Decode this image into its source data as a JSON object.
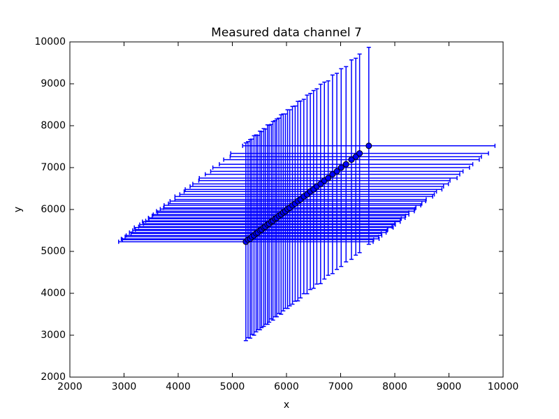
{
  "chart_data": {
    "type": "scatter",
    "title": "Measured data channel 7",
    "xlabel": "x",
    "ylabel": "y",
    "x": [
      5250,
      5290,
      5330,
      5360,
      5400,
      5440,
      5470,
      5510,
      5540,
      5580,
      5610,
      5650,
      5680,
      5720,
      5750,
      5790,
      5820,
      5860,
      5900,
      5940,
      5980,
      6020,
      6060,
      6110,
      6160,
      6210,
      6260,
      6320,
      6380,
      6440,
      6500,
      6560,
      6630,
      6700,
      6770,
      6850,
      6930,
      7010,
      7100,
      7200,
      7280,
      7350,
      7520
    ],
    "values": [
      5230,
      5280,
      5300,
      5350,
      5380,
      5430,
      5450,
      5500,
      5520,
      5570,
      5590,
      5640,
      5660,
      5710,
      5730,
      5780,
      5800,
      5850,
      5880,
      5930,
      5960,
      6010,
      6040,
      6100,
      6140,
      6200,
      6240,
      6310,
      6360,
      6430,
      6480,
      6550,
      6610,
      6690,
      6750,
      6840,
      6910,
      7000,
      7080,
      7190,
      7260,
      7340,
      7520
    ],
    "xerr": [
      2350,
      2320,
      2380,
      2340,
      2360,
      2310,
      2370,
      2350,
      2330,
      2390,
      2340,
      2360,
      2320,
      2380,
      2350,
      2330,
      2370,
      2340,
      2360,
      2320,
      2380,
      2350,
      2330,
      2370,
      2340,
      2360,
      2320,
      2380,
      2350,
      2330,
      2370,
      2340,
      2360,
      2320,
      2380,
      2350,
      2330,
      2370,
      2340,
      2360,
      2320,
      2380,
      2330
    ],
    "yerr": [
      2360,
      2340,
      2370,
      2330,
      2380,
      2350,
      2320,
      2370,
      2340,
      2360,
      2330,
      2380,
      2350,
      2320,
      2370,
      2340,
      2360,
      2330,
      2380,
      2350,
      2320,
      2370,
      2340,
      2360,
      2330,
      2380,
      2350,
      2320,
      2370,
      2340,
      2360,
      2330,
      2380,
      2350,
      2320,
      2370,
      2340,
      2360,
      2330,
      2380,
      2350,
      2370,
      2350
    ],
    "color": "#0000ff",
    "xlim": [
      2000,
      10000
    ],
    "xticks": [
      2000,
      3000,
      4000,
      5000,
      6000,
      7000,
      8000,
      9000,
      10000
    ],
    "ylim": [
      2000,
      10000
    ],
    "yticks": [
      2000,
      3000,
      4000,
      5000,
      6000,
      7000,
      8000,
      9000,
      10000
    ]
  }
}
